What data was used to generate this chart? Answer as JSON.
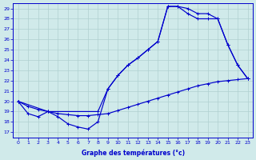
{
  "bg_color": "#d0eaea",
  "line_color": "#0000cc",
  "grid_color": "#b0d0d0",
  "xlabel": "Graphe des températures (°c)",
  "xlim_min": -0.5,
  "xlim_max": 23.5,
  "ylim_min": 16.5,
  "ylim_max": 29.5,
  "xticks": [
    0,
    1,
    2,
    3,
    4,
    5,
    6,
    7,
    8,
    9,
    10,
    11,
    12,
    13,
    14,
    15,
    16,
    17,
    18,
    19,
    20,
    21,
    22,
    23
  ],
  "yticks": [
    17,
    18,
    19,
    20,
    21,
    22,
    23,
    24,
    25,
    26,
    27,
    28,
    29
  ],
  "s1_x": [
    0,
    1,
    2,
    3,
    4,
    5,
    6,
    7,
    8,
    9,
    10,
    11,
    12,
    13,
    14,
    15,
    16,
    17,
    18,
    19,
    20,
    21,
    22,
    23
  ],
  "s1_y": [
    20.0,
    19.5,
    19.2,
    19.0,
    18.8,
    18.7,
    18.6,
    18.6,
    18.7,
    18.8,
    19.1,
    19.4,
    19.7,
    20.0,
    20.3,
    20.6,
    20.9,
    21.2,
    21.5,
    21.7,
    21.9,
    22.0,
    22.1,
    22.2
  ],
  "s2_x": [
    0,
    1,
    2,
    3,
    4,
    5,
    6,
    7,
    8,
    9,
    10,
    11,
    12,
    13,
    14,
    15,
    16,
    17,
    18,
    19,
    20,
    21,
    22,
    23
  ],
  "s2_y": [
    20.0,
    18.8,
    18.5,
    19.0,
    18.5,
    17.8,
    17.5,
    17.3,
    18.0,
    21.2,
    22.5,
    23.5,
    24.2,
    25.0,
    25.8,
    29.2,
    29.2,
    29.0,
    28.5,
    28.5,
    28.0,
    25.5,
    23.5,
    22.2
  ],
  "s3_x": [
    0,
    3,
    8,
    9,
    10,
    11,
    12,
    13,
    14,
    15,
    16,
    17,
    18,
    19,
    20,
    21,
    22,
    23
  ],
  "s3_y": [
    20.0,
    19.0,
    19.0,
    21.2,
    22.5,
    23.5,
    24.2,
    25.0,
    25.8,
    29.2,
    29.2,
    28.5,
    28.0,
    28.0,
    28.0,
    25.5,
    23.5,
    22.2
  ]
}
